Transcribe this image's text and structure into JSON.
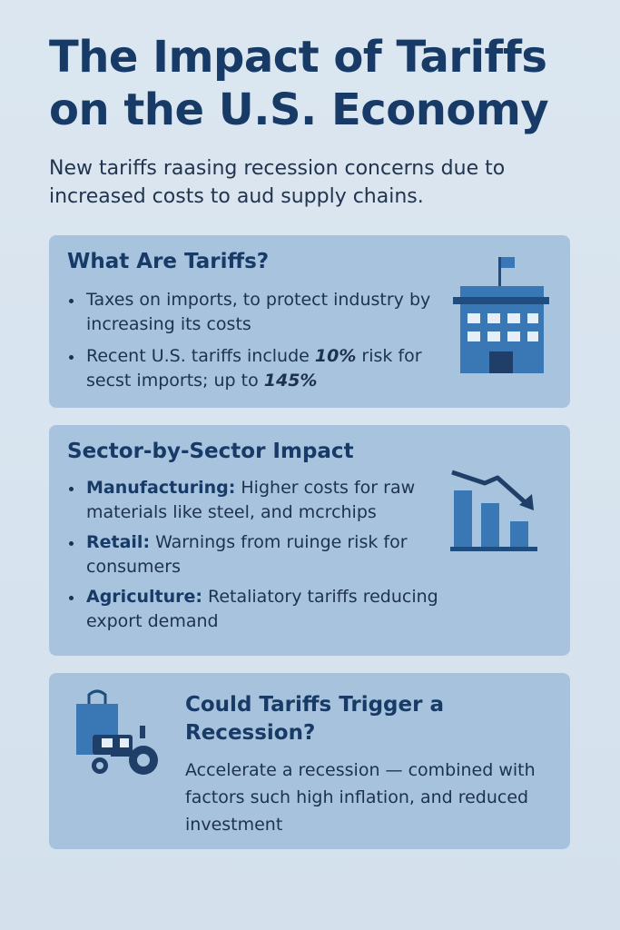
{
  "header": {
    "title_line1": "The Impact of Tariffs",
    "title_line2": "on the U.S. Economy",
    "subtitle": "New tariffs raasing recession concerns due to increased costs to aud supply chains."
  },
  "what_are_tariffs": {
    "heading": "What Are Tariffs?",
    "bullet1": "Taxes on imports, to protect industry by increasing its costs",
    "bullet2_pre": "Recent U.S. tariffs include ",
    "bullet2_em1": "10%",
    "bullet2_mid": " risk for secst imports; up to ",
    "bullet2_em2": "145%",
    "icon": "building-flag-icon"
  },
  "sector_impact": {
    "heading": "Sector-by-Sector Impact",
    "items": [
      {
        "label": "Manufacturing:",
        "text": " Higher costs for raw materials like steel, and mcrchips"
      },
      {
        "label": "Retail:",
        "text": " Warnings from ruinge risk for consumers"
      },
      {
        "label": "Agriculture:",
        "text": " Retaliatory tariffs reducing export demand"
      }
    ],
    "icon": "declining-bar-chart-icon"
  },
  "recession": {
    "heading": "Could Tariffs Trigger a Recession?",
    "body": "Accelerate a recession — combined with factors such high inflation, and reduced investment",
    "icon": "shopping-bag-tractor-icon"
  },
  "colors": {
    "background": "#d8e4ef",
    "card": "#a8c3dd",
    "title": "#173a66",
    "icon": "#3a78b5"
  }
}
